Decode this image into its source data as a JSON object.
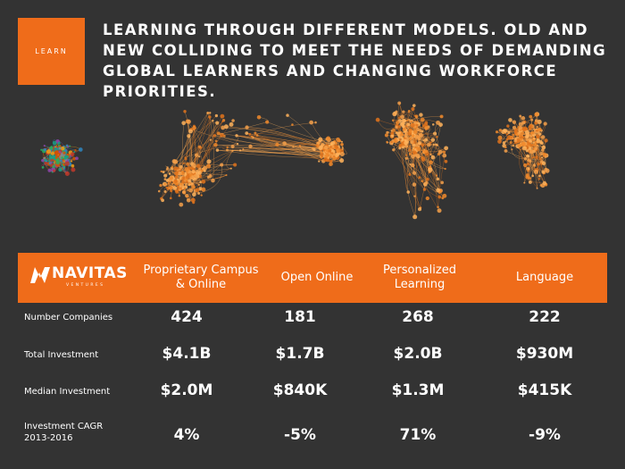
{
  "badge": {
    "label": "LEARN"
  },
  "headline": "LEARNING THROUGH DIFFERENT MODELS. OLD AND NEW COLLIDING TO MEET THE NEEDS OF DEMANDING GLOBAL LEARNERS AND CHANGING WORKFORCE PRIORITIES.",
  "logo": {
    "name": "NAVITAS",
    "sub": "VENTURES"
  },
  "table": {
    "columns": [
      "Proprietary Campus & Online",
      "Open Online",
      "Personalized Learning",
      "Language"
    ],
    "rows": [
      {
        "label": "Number Companies",
        "values": [
          "424",
          "181",
          "268",
          "222"
        ]
      },
      {
        "label": "Total Investment",
        "values": [
          "$4.1B",
          "$1.7B",
          "$2.0B",
          "$930M"
        ]
      },
      {
        "label": "Median Investment",
        "values": [
          "$2.0M",
          "$840K",
          "$1.3M",
          "$415K"
        ]
      },
      {
        "label": "Investment CAGR 2013-2016",
        "values": [
          "4%",
          "-5%",
          "71%",
          "-9%"
        ]
      }
    ]
  },
  "colors": {
    "accent": "#ef6c1a",
    "background": "#333333",
    "text": "#ffffff"
  }
}
